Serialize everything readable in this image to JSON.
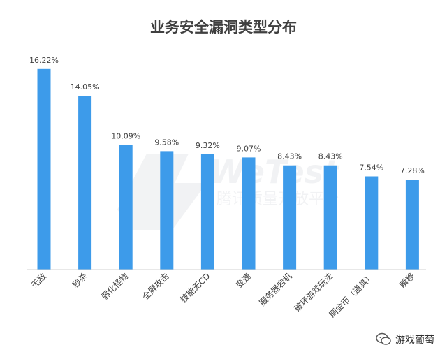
{
  "chart_data": {
    "type": "bar",
    "title": "业务安全漏洞类型分布",
    "categories": [
      "无敌",
      "秒杀",
      "弱化怪物",
      "全屏攻击",
      "技能无CD",
      "变速",
      "服务器宕机",
      "破坏游戏玩法",
      "刷金币（道具）",
      "瞬移"
    ],
    "values": [
      16.22,
      14.05,
      10.09,
      9.58,
      9.32,
      9.07,
      8.43,
      8.43,
      7.54,
      7.28
    ],
    "value_labels": [
      "16.22%",
      "14.05%",
      "10.09%",
      "9.58%",
      "9.32%",
      "9.07%",
      "8.43%",
      "8.43%",
      "7.54%",
      "7.28%"
    ],
    "ylim": [
      0,
      17
    ],
    "grid": false,
    "legend": "none",
    "bar_color": "#3D9BEA"
  },
  "watermark": {
    "brand": "WeTest",
    "subtitle": "腾讯质量开放平台"
  },
  "footer": {
    "icon": "wechat-icon",
    "brand": "游戏葡萄"
  }
}
